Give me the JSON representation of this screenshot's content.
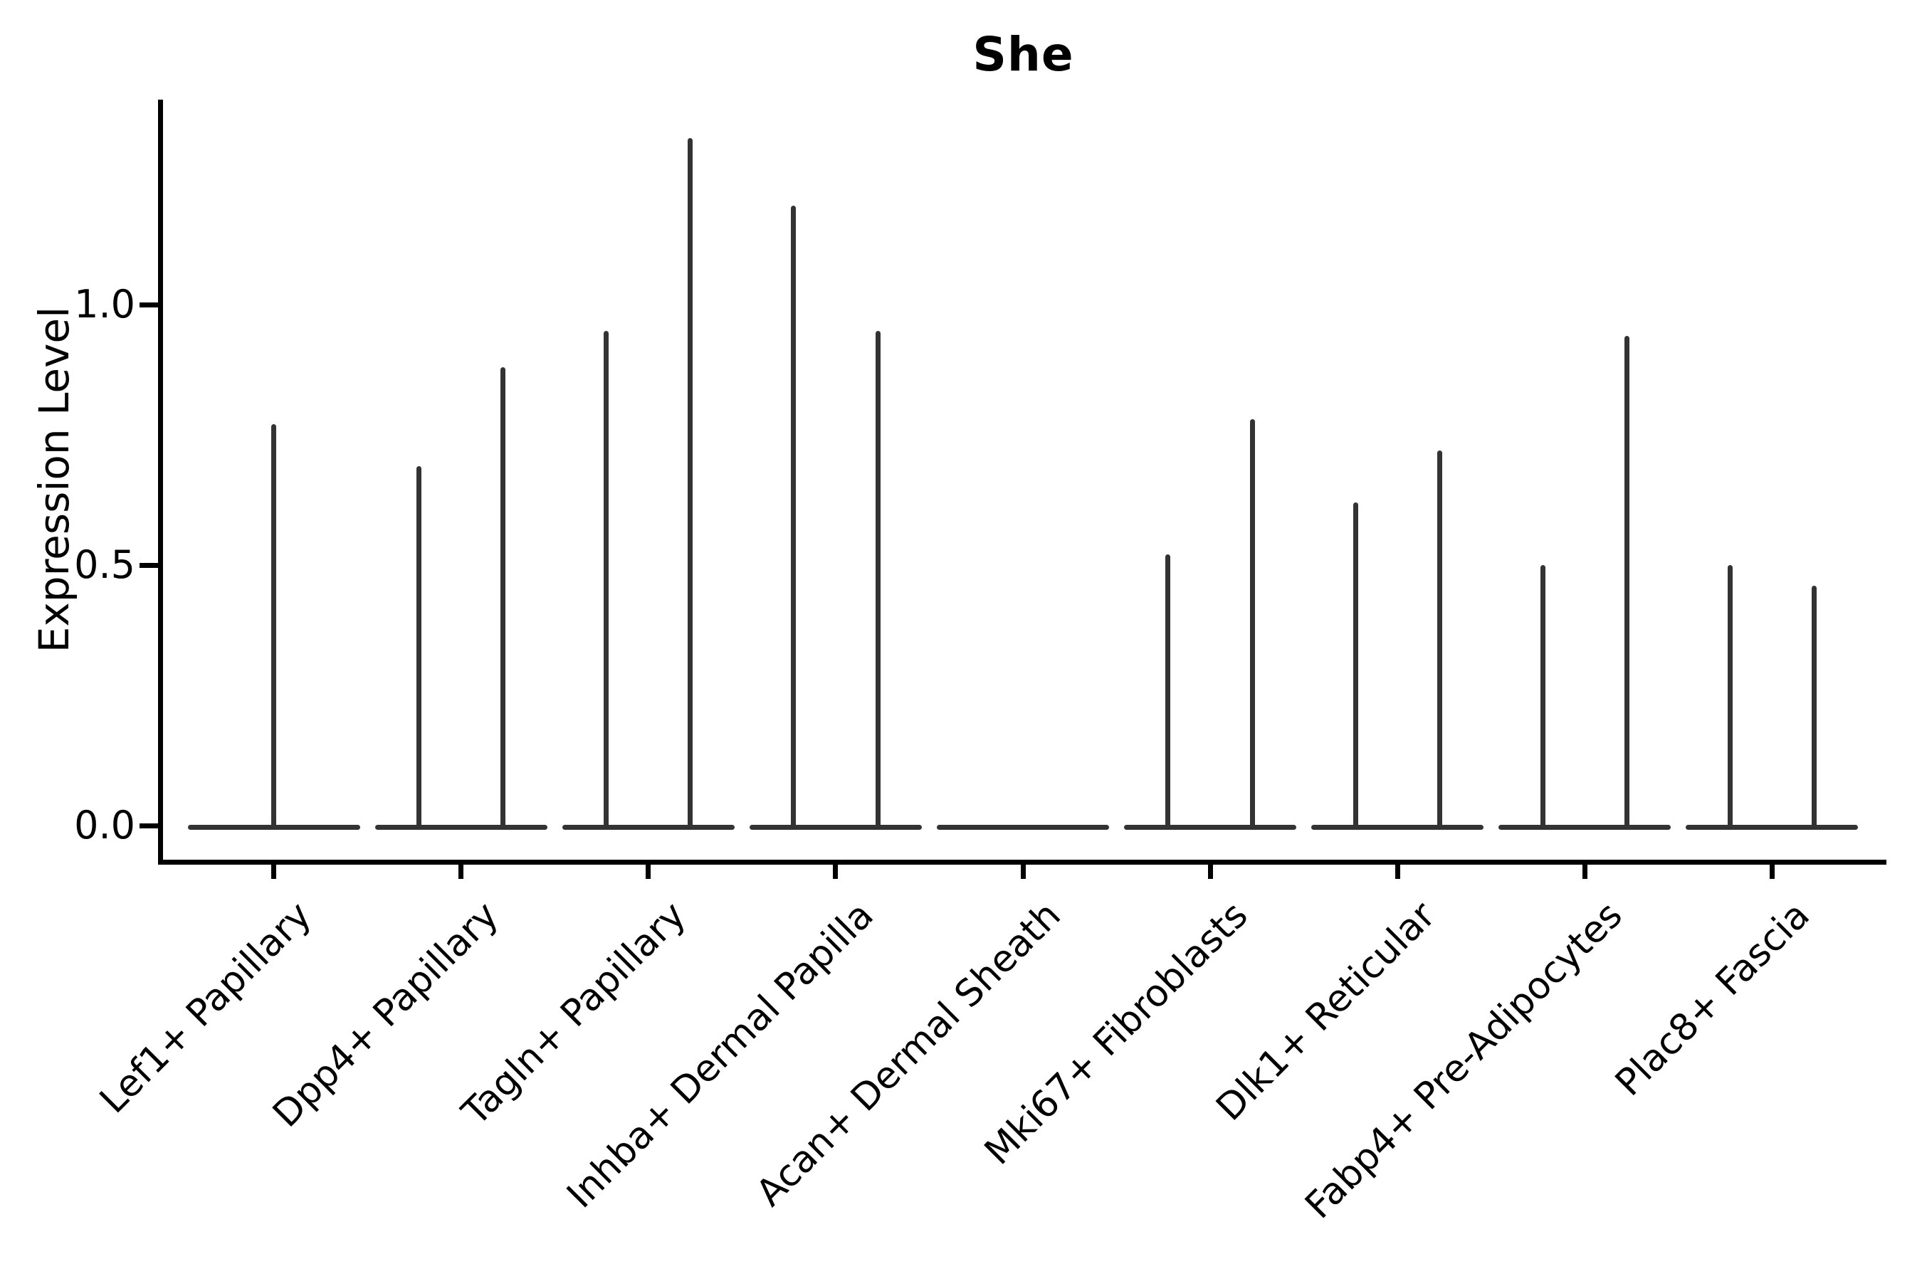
{
  "title": "She",
  "y_axis": {
    "label": "Expression Level",
    "tick_labels": [
      "0.0",
      "0.5",
      "1.0"
    ],
    "tick_values": [
      0.0,
      0.5,
      1.0
    ]
  },
  "colors": {
    "background": "#ffffff",
    "axis": "#000000",
    "text": "#000000",
    "violin": "#333333"
  },
  "chart_data": {
    "type": "violin",
    "title": "She",
    "xlabel": "",
    "ylabel": "Expression Level",
    "ylim": [
      -0.075,
      1.39
    ],
    "y_ticks": [
      0.0,
      0.5,
      1.0
    ],
    "grid": false,
    "legend": false,
    "categories": [
      "Lef1+ Papillary",
      "Dpp4+ Papillary",
      "Tagln+ Papillary",
      "Inhba+ Dermal Papilla",
      "Acan+ Dermal Sheath",
      "Mki67+ Fibroblasts",
      "Dlk1+ Reticular",
      "Fabp4+ Pre-Adipocytes",
      "Plac8+ Fascia"
    ],
    "violin_description": "Each category shows a flat violin body at expression 0 with thin spikes rising to the maximum expression value; offset is the spike position as a fraction of category spacing",
    "base_halfwidth": 0.46,
    "violins": [
      {
        "category": "Lef1+ Papillary",
        "spikes": [
          {
            "offset": 0.0,
            "max": 0.77
          }
        ]
      },
      {
        "category": "Dpp4+ Papillary",
        "spikes": [
          {
            "offset": -0.225,
            "max": 0.69
          },
          {
            "offset": 0.225,
            "max": 0.88
          }
        ]
      },
      {
        "category": "Tagln+ Papillary",
        "spikes": [
          {
            "offset": -0.225,
            "max": 0.95
          },
          {
            "offset": 0.225,
            "max": 1.32
          }
        ]
      },
      {
        "category": "Inhba+ Dermal Papilla",
        "spikes": [
          {
            "offset": -0.225,
            "max": 1.19
          },
          {
            "offset": 0.225,
            "max": 0.95
          }
        ]
      },
      {
        "category": "Acan+ Dermal Sheath",
        "spikes": []
      },
      {
        "category": "Mki67+ Fibroblasts",
        "spikes": [
          {
            "offset": -0.225,
            "max": 0.52
          },
          {
            "offset": 0.225,
            "max": 0.78
          }
        ]
      },
      {
        "category": "Dlk1+ Reticular",
        "spikes": [
          {
            "offset": -0.225,
            "max": 0.62
          },
          {
            "offset": 0.225,
            "max": 0.72
          }
        ]
      },
      {
        "category": "Fabp4+ Pre-Adipocytes",
        "spikes": [
          {
            "offset": -0.225,
            "max": 0.5
          },
          {
            "offset": 0.225,
            "max": 0.94
          }
        ]
      },
      {
        "category": "Plac8+ Fascia",
        "spikes": [
          {
            "offset": -0.225,
            "max": 0.5
          },
          {
            "offset": 0.225,
            "max": 0.46
          }
        ]
      }
    ]
  }
}
